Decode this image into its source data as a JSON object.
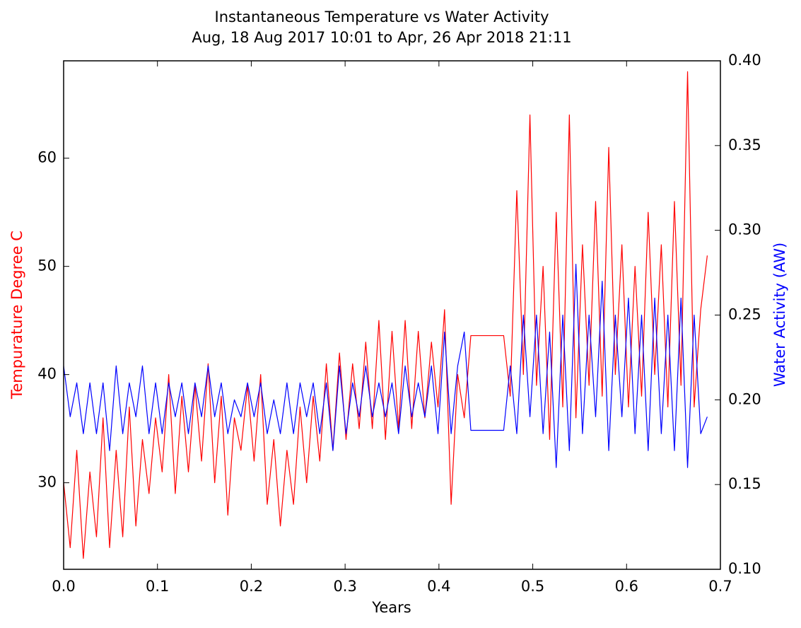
{
  "chart_data": {
    "type": "line",
    "title": "Instantaneous Temperature vs Water Activity",
    "subtitle": "Aug, 18 Aug 2017 10:01 to Apr, 26 Apr 2018 21:11",
    "x_label": "Years",
    "x": [
      0,
      0.007,
      0.014,
      0.021,
      0.028,
      0.035,
      0.042,
      0.049,
      0.056,
      0.063,
      0.07,
      0.077,
      0.084,
      0.091,
      0.098,
      0.105,
      0.112,
      0.119,
      0.126,
      0.133,
      0.14,
      0.147,
      0.154,
      0.161,
      0.168,
      0.175,
      0.182,
      0.189,
      0.196,
      0.203,
      0.21,
      0.217,
      0.224,
      0.231,
      0.238,
      0.245,
      0.252,
      0.259,
      0.266,
      0.273,
      0.28,
      0.287,
      0.294,
      0.301,
      0.308,
      0.315,
      0.322,
      0.329,
      0.336,
      0.343,
      0.35,
      0.357,
      0.364,
      0.371,
      0.378,
      0.385,
      0.392,
      0.399,
      0.406,
      0.413,
      0.42,
      0.427,
      0.434,
      0.441,
      0.448,
      0.455,
      0.462,
      0.469,
      0.476,
      0.483,
      0.49,
      0.497,
      0.504,
      0.511,
      0.518,
      0.525,
      0.532,
      0.539,
      0.546,
      0.553,
      0.56,
      0.567,
      0.574,
      0.581,
      0.588,
      0.595,
      0.602,
      0.609,
      0.616,
      0.623,
      0.63,
      0.637,
      0.644,
      0.651,
      0.658,
      0.665,
      0.672,
      0.679,
      0.686
    ],
    "series": [
      {
        "name": "Tempurature Degree C",
        "color": "#ff0000",
        "values": [
          30,
          24,
          33,
          23,
          31,
          25,
          36,
          24,
          33,
          25,
          37,
          26,
          34,
          29,
          36,
          31,
          40,
          29,
          38,
          31,
          39,
          32,
          41,
          30,
          38,
          27,
          36,
          33,
          39,
          32,
          40,
          28,
          34,
          26,
          33,
          28,
          37,
          30,
          38,
          32,
          41,
          33,
          42,
          34,
          41,
          35,
          43,
          35,
          45,
          34,
          44,
          35,
          45,
          35,
          44,
          36,
          43,
          37,
          46,
          28,
          40,
          36,
          43.6,
          43.6,
          43.6,
          43.6,
          43.6,
          43.6,
          38,
          57,
          40,
          64,
          39,
          50,
          34,
          55,
          37,
          64,
          36,
          52,
          39,
          56,
          38,
          61,
          40,
          52,
          37,
          50,
          38,
          55,
          40,
          52,
          37,
          56,
          39,
          68,
          37,
          46,
          51
        ]
      },
      {
        "name": "Water Activity (AW)",
        "color": "#0000ff",
        "axis": "y2",
        "values": [
          0.22,
          0.19,
          0.21,
          0.18,
          0.21,
          0.18,
          0.21,
          0.17,
          0.22,
          0.18,
          0.21,
          0.19,
          0.22,
          0.18,
          0.21,
          0.18,
          0.21,
          0.19,
          0.21,
          0.18,
          0.21,
          0.19,
          0.22,
          0.19,
          0.21,
          0.18,
          0.2,
          0.19,
          0.21,
          0.19,
          0.21,
          0.18,
          0.2,
          0.18,
          0.21,
          0.18,
          0.21,
          0.19,
          0.21,
          0.18,
          0.21,
          0.17,
          0.22,
          0.18,
          0.21,
          0.19,
          0.22,
          0.19,
          0.21,
          0.19,
          0.21,
          0.18,
          0.22,
          0.19,
          0.21,
          0.19,
          0.22,
          0.18,
          0.24,
          0.18,
          0.22,
          0.24,
          0.182,
          0.182,
          0.182,
          0.182,
          0.182,
          0.182,
          0.22,
          0.18,
          0.25,
          0.19,
          0.25,
          0.18,
          0.24,
          0.16,
          0.25,
          0.17,
          0.28,
          0.18,
          0.25,
          0.19,
          0.27,
          0.17,
          0.25,
          0.19,
          0.26,
          0.18,
          0.25,
          0.17,
          0.26,
          0.18,
          0.25,
          0.17,
          0.26,
          0.16,
          0.25,
          0.18,
          0.19
        ]
      }
    ],
    "xlim": [
      0,
      0.7
    ],
    "xticks": [
      {
        "value": 0,
        "label": "0.0"
      },
      0.1,
      0.2,
      0.3,
      0.4,
      0.5,
      0.6,
      0.7
    ],
    "ylim": [
      22,
      69
    ],
    "yticks": [
      30,
      40,
      50,
      60
    ],
    "y2lim": [
      0.1,
      0.4
    ],
    "y2ticks": [
      {
        "value": 0.1,
        "label": "0.10"
      },
      0.15,
      {
        "value": 0.2,
        "label": "0.20"
      },
      0.25,
      {
        "value": 0.3,
        "label": "0.30"
      },
      0.35,
      {
        "value": 0.4,
        "label": "0.40"
      }
    ],
    "grid": false
  }
}
